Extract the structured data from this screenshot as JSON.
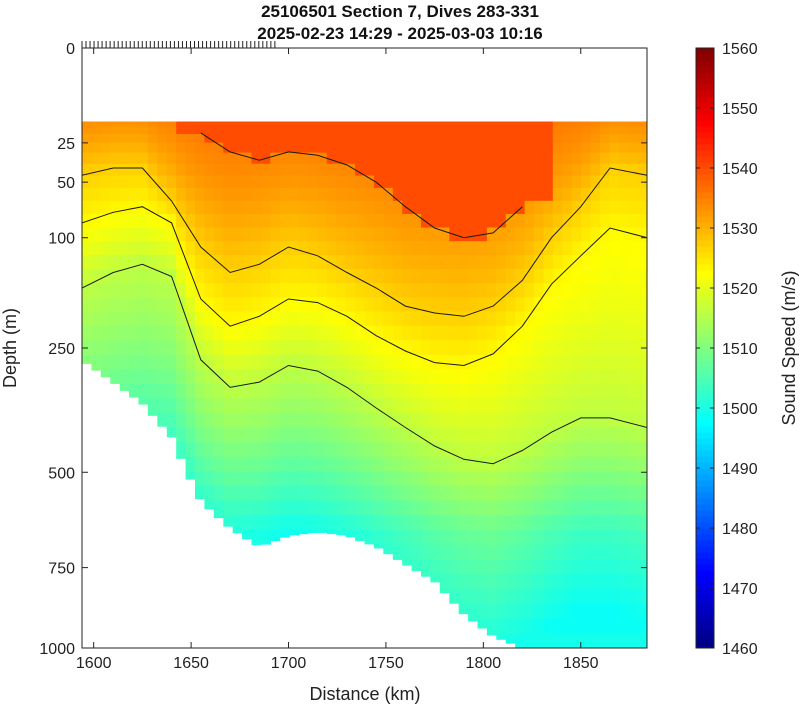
{
  "chart_data": {
    "type": "heatmap",
    "title": "25106501 Section 7, Dives 283-331",
    "subtitle": "2025-02-23 14:29 - 2025-03-03 10:16",
    "xlabel": "Distance (km)",
    "ylabel": "Depth (m)",
    "colorbar_label": "Sound Speed (m/s)",
    "xlim": [
      1594,
      1884
    ],
    "ylim": [
      0,
      1000
    ],
    "y_scale": "sqrt",
    "x_ticks": [
      1600,
      1650,
      1700,
      1750,
      1800,
      1850
    ],
    "y_ticks": [
      0,
      25,
      50,
      100,
      250,
      500,
      750,
      1000
    ],
    "colorbar_range": [
      1460,
      1560
    ],
    "colorbar_ticks": [
      1460,
      1470,
      1480,
      1490,
      1500,
      1510,
      1520,
      1530,
      1540,
      1550,
      1560
    ],
    "colormap": "jet",
    "contour_levels": [
      1525,
      1530,
      1535
    ],
    "dive_count": 49,
    "field": {
      "distance_km": [
        1594,
        1610,
        1625,
        1640,
        1655,
        1670,
        1685,
        1700,
        1715,
        1730,
        1745,
        1760,
        1775,
        1790,
        1805,
        1820,
        1835,
        1850,
        1865,
        1884
      ],
      "bottom_depth_m": [
        270,
        310,
        350,
        420,
        570,
        640,
        690,
        660,
        650,
        660,
        690,
        740,
        790,
        890,
        960,
        1000,
        1000,
        1000,
        1000,
        1000
      ],
      "surface_data_depth_m": 15,
      "thermocline_25": [
        45,
        40,
        40,
        65,
        110,
        140,
        130,
        110,
        120,
        140,
        160,
        185,
        195,
        200,
        185,
        150,
        100,
        70,
        40,
        45
      ],
      "thermocline_50": [
        85,
        75,
        70,
        85,
        175,
        215,
        200,
        175,
        180,
        200,
        230,
        255,
        275,
        280,
        260,
        215,
        155,
        120,
        90,
        100
      ],
      "thermocline_75": [
        160,
        140,
        130,
        145,
        270,
        320,
        310,
        280,
        290,
        320,
        360,
        400,
        440,
        470,
        480,
        450,
        410,
        380,
        380,
        400
      ],
      "upper_core_1540": [
        null,
        null,
        null,
        null,
        20,
        30,
        35,
        30,
        32,
        38,
        50,
        70,
        90,
        100,
        95,
        70,
        null,
        null,
        null,
        null
      ]
    }
  }
}
